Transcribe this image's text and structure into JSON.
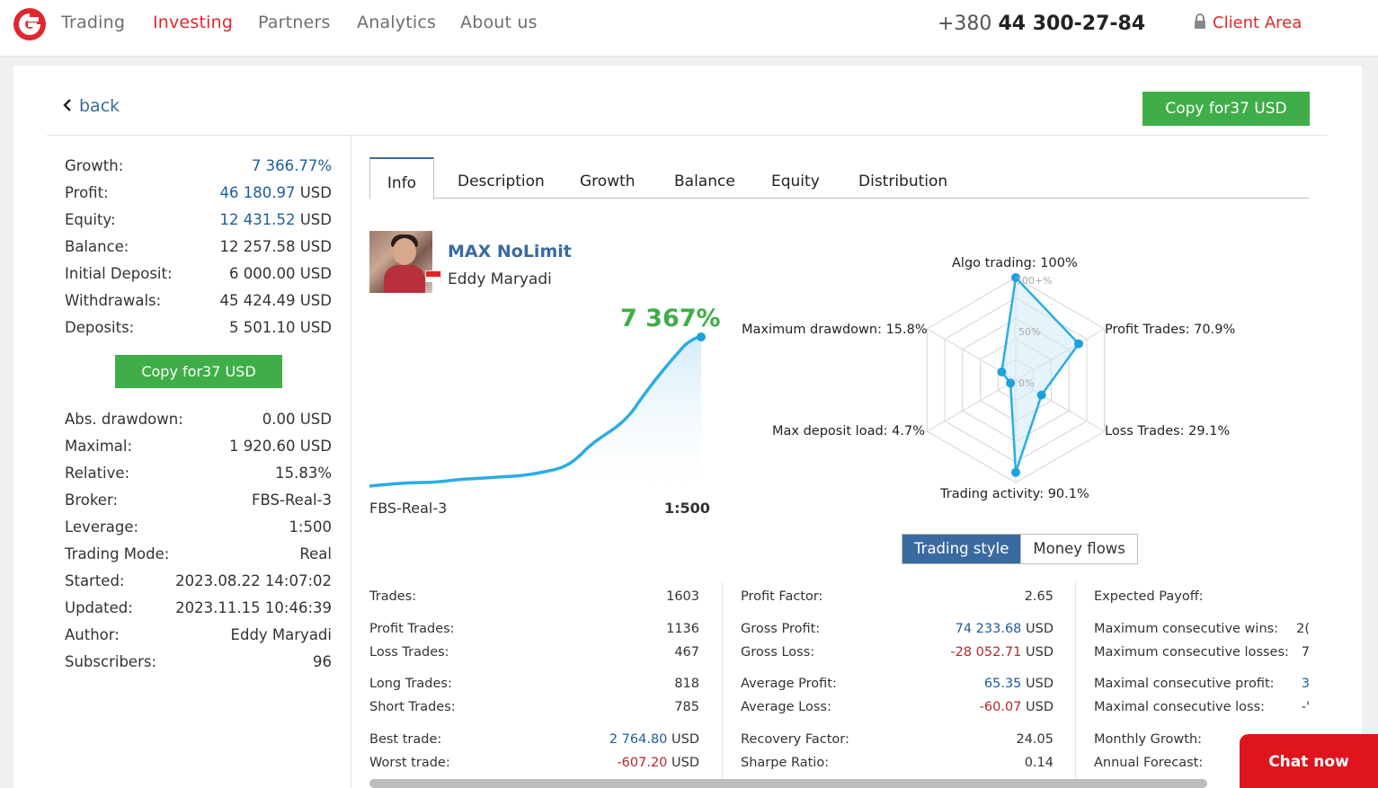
{
  "nav": {
    "items": [
      {
        "label": "Trading"
      },
      {
        "label": "Investing"
      },
      {
        "label": "Partners"
      },
      {
        "label": "Analytics"
      },
      {
        "label": "About us"
      }
    ],
    "active_index": 1,
    "phone_prefix": "+380",
    "phone_number": "44 300-27-84",
    "client_area": "Client Area"
  },
  "colors": {
    "brand_red": "#e0262c",
    "green": "#3fae48",
    "blue": "#3a6aa0",
    "value_blue": "#1e5d96"
  },
  "header": {
    "back_label": "back",
    "copy_button": "Copy for37  USD"
  },
  "left_stats": {
    "top": [
      {
        "label": "Growth:",
        "value": "7 366.77%"
      },
      {
        "label": "Profit:",
        "value": "46 180.97",
        "unit": "USD"
      },
      {
        "label": "Equity:",
        "value": "12 431.52",
        "unit": "USD"
      },
      {
        "label": "Balance:",
        "value": "12 257.58 USD"
      },
      {
        "label": "Initial Deposit:",
        "value": "6 000.00 USD"
      },
      {
        "label": "Withdrawals:",
        "value": "45 424.49 USD"
      },
      {
        "label": "Deposits:",
        "value": "5 501.10 USD"
      }
    ],
    "copy_button": "Copy for37  USD",
    "bottom": [
      {
        "label": "Abs. drawdown:",
        "value": "0.00 USD"
      },
      {
        "label": "Maximal:",
        "value": "1 920.60 USD"
      },
      {
        "label": "Relative:",
        "value": "15.83%"
      },
      {
        "label": "Broker:",
        "value": "FBS-Real-3"
      },
      {
        "label": "Leverage:",
        "value": "1:500"
      },
      {
        "label": "Trading Mode:",
        "value": "Real"
      },
      {
        "label": "Started:",
        "value": "2023.08.22 14:07:02"
      },
      {
        "label": "Updated:",
        "value": "2023.11.15 10:46:39"
      },
      {
        "label": "Author:",
        "value": "Eddy Maryadi"
      },
      {
        "label": "Subscribers:",
        "value": "96"
      }
    ]
  },
  "tabs": [
    {
      "label": "Info"
    },
    {
      "label": "Description"
    },
    {
      "label": "Growth"
    },
    {
      "label": "Balance"
    },
    {
      "label": "Equity"
    },
    {
      "label": "Distribution"
    }
  ],
  "profile": {
    "name": "MAX NoLimit",
    "author": "Eddy Maryadi",
    "growth": "7 367%",
    "broker": "FBS-Real-3",
    "leverage": "1:500"
  },
  "radar": {
    "labels": {
      "algo": "Algo trading: 100%",
      "profit": "Profit Trades: 70.9%",
      "loss": "Loss Trades: 29.1%",
      "activity": "Trading activity: 90.1%",
      "deposit_load": "Max deposit load: 4.7%",
      "drawdown": "Maximum drawdown: 15.8%"
    },
    "scale": {
      "max": "100+%",
      "mid": "50%",
      "zero": "0%"
    },
    "values": [
      100,
      70.9,
      29.1,
      90.1,
      4.7,
      15.8
    ]
  },
  "toggle": {
    "active": "Trading style",
    "inactive": "Money flows"
  },
  "stats": {
    "col1": [
      {
        "label": "Trades:",
        "value": "1603"
      },
      {
        "label": "Profit Trades:",
        "value": "1136"
      },
      {
        "label": "Loss Trades:",
        "value": "467"
      },
      {
        "label": "Long Trades:",
        "value": "818"
      },
      {
        "label": "Short Trades:",
        "value": "785"
      },
      {
        "label": "Best trade:",
        "value": "2 764.80",
        "unit": "USD"
      },
      {
        "label": "Worst trade:",
        "value": "-607.20",
        "unit": "USD"
      }
    ],
    "col2": [
      {
        "label": "Profit Factor:",
        "value": "2.65"
      },
      {
        "label": "Gross Profit:",
        "value": "74 233.68",
        "unit": "USD"
      },
      {
        "label": "Gross Loss:",
        "value": "-28 052.71",
        "unit": "USD"
      },
      {
        "label": "Average Profit:",
        "value": "65.35",
        "unit": "USD"
      },
      {
        "label": "Average Loss:",
        "value": "-60.07",
        "unit": "USD"
      },
      {
        "label": "Recovery Factor:",
        "value": "24.05"
      },
      {
        "label": "Sharpe Ratio:",
        "value": "0.14"
      }
    ],
    "col3": [
      {
        "label": "Expected Payoff:",
        "value": ""
      },
      {
        "label": "Maximum consecutive wins:",
        "value": "2("
      },
      {
        "label": "Maximum consecutive losses:",
        "value": "7"
      },
      {
        "label": "Maximal consecutive profit:",
        "value": "3"
      },
      {
        "label": "Maximal consecutive loss:",
        "value": "-'"
      },
      {
        "label": "Monthly Growth:",
        "value": ""
      },
      {
        "label": "Annual Forecast:",
        "value": ""
      }
    ]
  },
  "chat": {
    "label": "Chat now"
  }
}
